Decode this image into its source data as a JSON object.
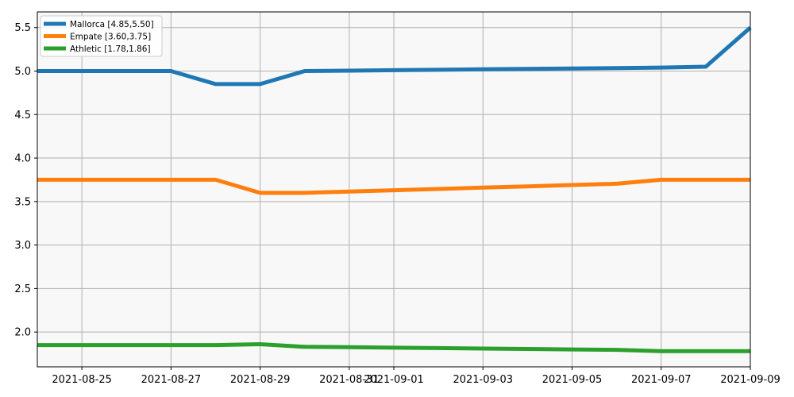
{
  "chart_data": {
    "type": "line",
    "title": "",
    "xlabel": "",
    "ylabel": "",
    "x": [
      "2021-08-24",
      "2021-08-25",
      "2021-08-26",
      "2021-08-27",
      "2021-08-28",
      "2021-08-29",
      "2021-08-30",
      "2021-08-31",
      "2021-09-01",
      "2021-09-02",
      "2021-09-03",
      "2021-09-04",
      "2021-09-05",
      "2021-09-06",
      "2021-09-07",
      "2021-09-08",
      "2021-09-09"
    ],
    "series": [
      {
        "name": "Mallorca [4.85,5.50]",
        "color": "#1f77b4",
        "values": [
          5.0,
          5.0,
          5.0,
          5.0,
          4.85,
          4.85,
          5.0,
          5.005,
          5.01,
          5.015,
          5.02,
          5.025,
          5.03,
          5.035,
          5.04,
          5.05,
          5.5
        ]
      },
      {
        "name": "Empate [3.60,3.75]",
        "color": "#ff7f0e",
        "values": [
          3.75,
          3.75,
          3.75,
          3.75,
          3.75,
          3.6,
          3.6,
          3.615,
          3.63,
          3.645,
          3.66,
          3.675,
          3.69,
          3.705,
          3.75,
          3.75,
          3.75
        ]
      },
      {
        "name": "Athletic [1.78,1.86]",
        "color": "#2ca02c",
        "values": [
          1.85,
          1.85,
          1.85,
          1.85,
          1.85,
          1.86,
          1.83,
          1.825,
          1.82,
          1.815,
          1.81,
          1.805,
          1.8,
          1.795,
          1.78,
          1.78,
          1.78
        ]
      }
    ],
    "xticks": [
      "2021-08-25",
      "2021-08-27",
      "2021-08-29",
      "2021-08-31",
      "2021-09-01",
      "2021-09-03",
      "2021-09-05",
      "2021-09-07",
      "2021-09-09"
    ],
    "yticks": [
      "2.0",
      "2.5",
      "3.0",
      "3.5",
      "4.0",
      "4.5",
      "5.0",
      "5.5"
    ],
    "xlim": [
      "2021-08-24",
      "2021-09-09"
    ],
    "ylim": [
      1.6,
      5.68
    ],
    "grid": true,
    "legend_position": "top-left",
    "plot_background": "#f8f8f8"
  }
}
